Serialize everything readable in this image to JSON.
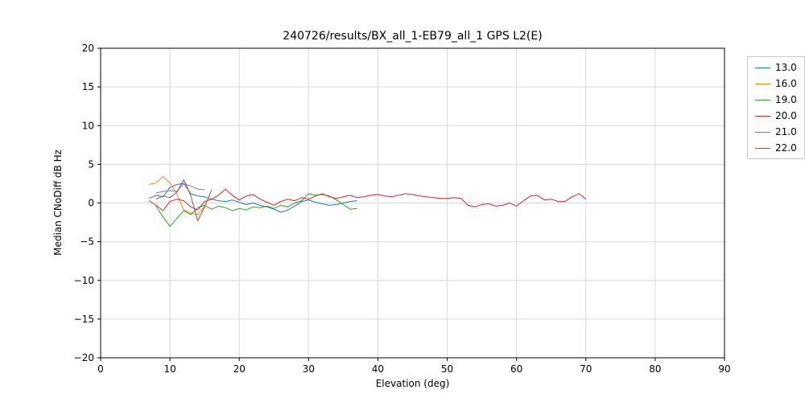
{
  "chart_data": {
    "type": "line",
    "title": "240726/results/BX_all_1-EB79_all_1 GPS L2(E)",
    "xlabel": "Elevation (deg)",
    "ylabel": "Median CNoDiff dB Hz",
    "xlim": [
      0,
      90
    ],
    "ylim": [
      -20,
      20
    ],
    "xticks": [
      0,
      10,
      20,
      30,
      40,
      50,
      60,
      70,
      80,
      90
    ],
    "yticks": [
      -20,
      -15,
      -10,
      -5,
      0,
      5,
      10,
      15,
      20
    ],
    "grid": true,
    "legend_position": "outside upper right",
    "series": [
      {
        "name": "13.0",
        "color": "#1f77b4",
        "x": [
          7,
          8,
          9,
          10,
          11,
          12,
          13,
          14,
          15,
          16,
          17,
          18,
          19,
          20,
          21,
          22,
          23,
          24,
          25,
          26,
          27,
          28,
          29,
          30,
          31,
          32,
          33,
          34,
          35,
          36,
          37
        ],
        "y": [
          0.6,
          1.0,
          0.8,
          2.0,
          2.4,
          2.5,
          1.2,
          0.9,
          0.8,
          0.5,
          0.3,
          0.2,
          0.4,
          0.1,
          -0.2,
          0.0,
          -0.3,
          -0.5,
          -0.8,
          -1.2,
          -0.9,
          -0.4,
          0.2,
          0.4,
          0.1,
          -0.1,
          -0.3,
          -0.2,
          0.0,
          0.2,
          0.3
        ]
      },
      {
        "name": "16.0",
        "color": "#ff7f0e",
        "x": [
          7,
          8,
          9,
          10,
          11,
          12,
          13,
          14,
          15
        ],
        "y": [
          2.4,
          2.6,
          3.4,
          2.6,
          1.2,
          -0.9,
          -1.3,
          -1.5,
          -0.4
        ]
      },
      {
        "name": "19.0",
        "color": "#2ca02c",
        "x": [
          8,
          9,
          10,
          11,
          12,
          13,
          14,
          15,
          16,
          17,
          18,
          19,
          20,
          21,
          22,
          23,
          24,
          25,
          26,
          27,
          28,
          29,
          30,
          31,
          32,
          33,
          34,
          35,
          36,
          37
        ],
        "y": [
          -0.4,
          -1.8,
          -3.0,
          -2.0,
          -1.0,
          -1.5,
          -0.6,
          -0.3,
          -0.8,
          -0.4,
          -0.6,
          -1.0,
          -0.7,
          -0.9,
          -0.5,
          -0.6,
          -0.4,
          -0.7,
          -0.3,
          -0.5,
          0.0,
          0.3,
          1.2,
          1.0,
          1.1,
          0.9,
          0.4,
          -0.2,
          -0.8,
          -0.7
        ]
      },
      {
        "name": "20.0",
        "color": "#d62728",
        "x": [
          7,
          8,
          9,
          10,
          11,
          12,
          13,
          14,
          15,
          16,
          17,
          18,
          19,
          20,
          21,
          22,
          23,
          24,
          25,
          26,
          27,
          28,
          29,
          30,
          31,
          32,
          33,
          34,
          35,
          36,
          37,
          38,
          39,
          40,
          41,
          42,
          43,
          44,
          45,
          46,
          47,
          48,
          49,
          50,
          51,
          52,
          53,
          54,
          55,
          56,
          57,
          58,
          59,
          60,
          61,
          62,
          63,
          64,
          65,
          66,
          67,
          68,
          69,
          70
        ],
        "y": [
          0.3,
          -0.3,
          -1.0,
          0.2,
          0.5,
          0.3,
          -0.5,
          -0.9,
          0.2,
          0.5,
          1.0,
          1.8,
          1.0,
          0.4,
          0.9,
          1.1,
          0.5,
          0.1,
          -0.3,
          0.2,
          0.5,
          0.3,
          0.7,
          0.5,
          0.9,
          1.2,
          0.8,
          0.6,
          0.8,
          1.0,
          0.7,
          0.8,
          1.0,
          1.1,
          0.9,
          0.8,
          1.0,
          1.2,
          1.1,
          0.9,
          0.8,
          0.7,
          0.6,
          0.6,
          0.7,
          0.6,
          -0.3,
          -0.5,
          -0.2,
          -0.1,
          -0.4,
          -0.3,
          0.0,
          -0.4,
          0.3,
          0.9,
          1.0,
          0.4,
          0.5,
          0.2,
          0.2,
          0.8,
          1.2,
          0.5
        ]
      },
      {
        "name": "21.0",
        "color": "#9467bd",
        "x": [
          8,
          9,
          10,
          11,
          12,
          13,
          14,
          15
        ],
        "y": [
          1.3,
          1.5,
          1.6,
          1.5,
          2.5,
          2.2,
          1.8,
          1.7
        ]
      },
      {
        "name": "22.0",
        "color": "#8c564b",
        "x": [
          8,
          9,
          10,
          11,
          12,
          13,
          14,
          15,
          16
        ],
        "y": [
          0.5,
          0.9,
          0.7,
          1.4,
          3.0,
          1.0,
          -2.3,
          -0.5,
          1.7
        ]
      }
    ]
  }
}
